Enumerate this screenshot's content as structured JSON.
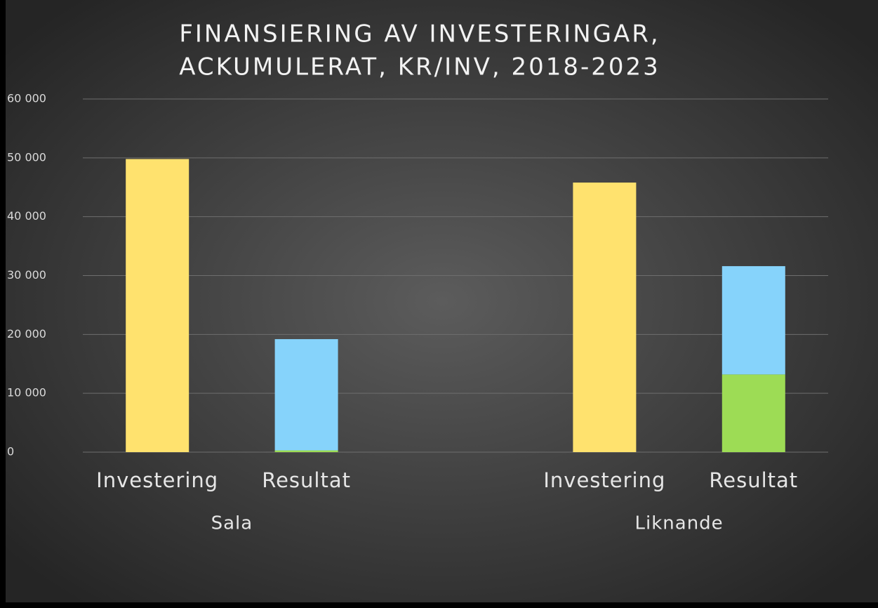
{
  "chart_data": {
    "type": "stacked-bar",
    "title": [
      "FINANSIERING AV INVESTERINGAR,",
      "ACKUMULERAT, KR/INV, 2018-2023"
    ],
    "categories": [
      "Investering",
      "Resultat",
      "Investering",
      "Resultat"
    ],
    "groups": [
      "Sala",
      "Liknande"
    ],
    "series": [
      {
        "color": "#ffe26e",
        "values": [
          49800,
          null,
          45800,
          null
        ]
      },
      {
        "color": "#9ddc55",
        "values": [
          null,
          300,
          null,
          13200
        ]
      },
      {
        "color": "#86d3fb",
        "values": [
          null,
          18900,
          null,
          18400
        ]
      }
    ],
    "ylim": [
      0,
      60000
    ],
    "yticks": [
      0,
      {
        "value": 10000,
        "label": "10 000"
      },
      {
        "value": 20000,
        "label": "20 000"
      },
      {
        "value": 30000,
        "label": "30 000"
      },
      {
        "value": 40000,
        "label": "40 000"
      },
      {
        "value": 50000,
        "label": "50 000"
      },
      {
        "value": 60000,
        "label": "60 000"
      }
    ],
    "grid": true
  }
}
